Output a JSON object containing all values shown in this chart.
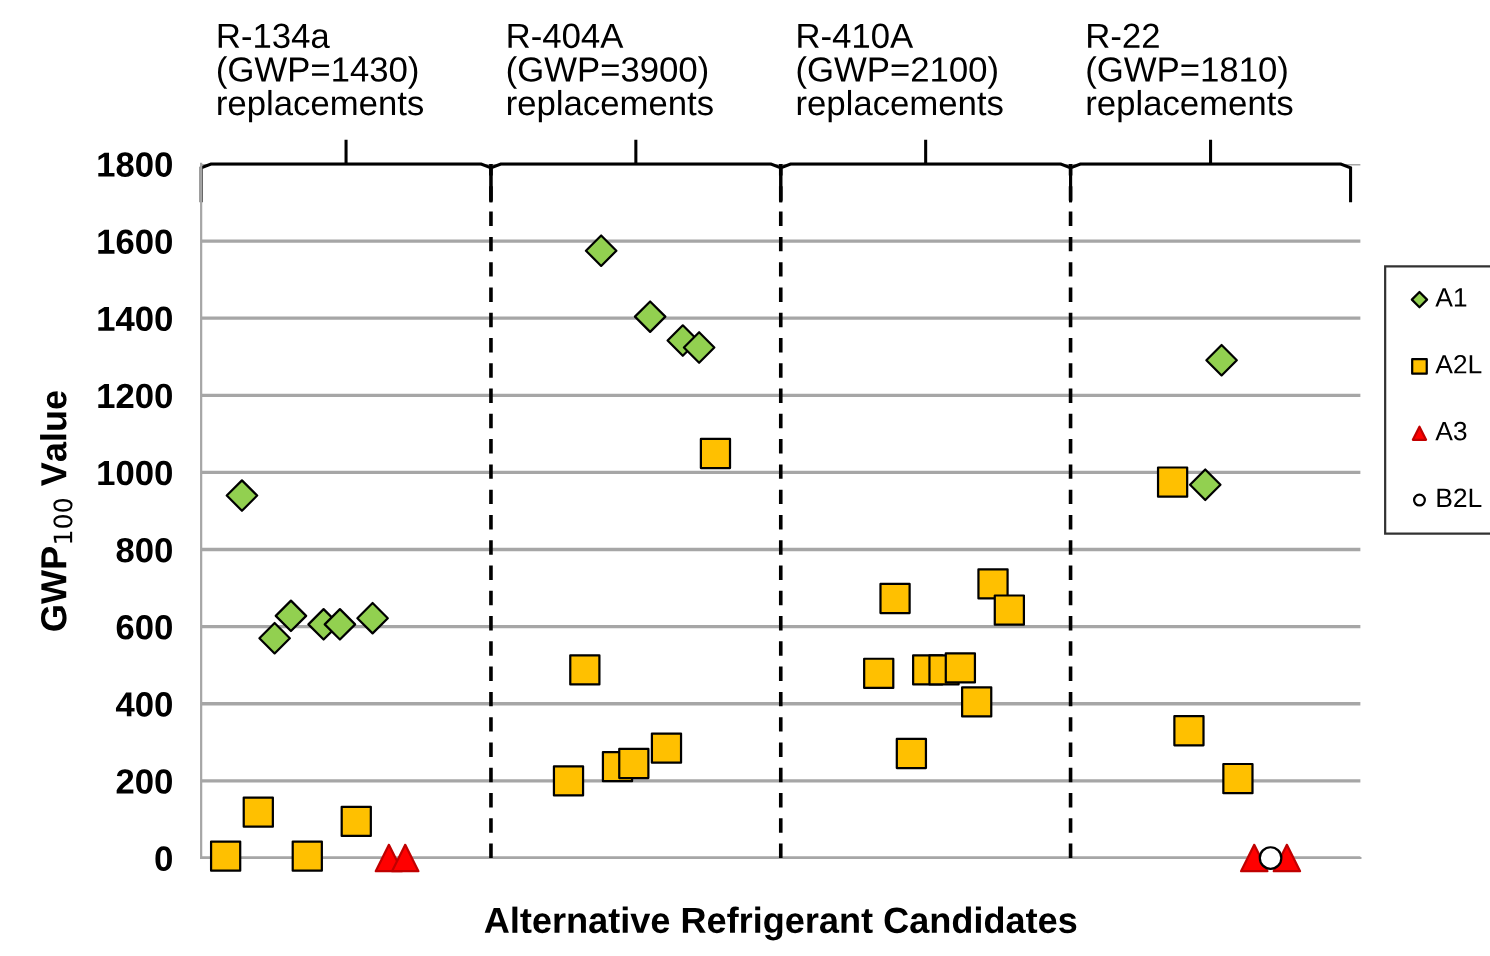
{
  "chart_data": {
    "type": "scatter",
    "xlabel": "Alternative Refrigerant Candidates",
    "ylabel": "GWP$_{100}$ Value",
    "categories": [
      null,
      null,
      null,
      null,
      null,
      null,
      null,
      null,
      null,
      null,
      null,
      null,
      null,
      null,
      null,
      null,
      null,
      null,
      null,
      null,
      null,
      null,
      null,
      null,
      null,
      null,
      null,
      null,
      null,
      null,
      null,
      null,
      null,
      null,
      null,
      null,
      null,
      null,
      null,
      null,
      null,
      null,
      null,
      null,
      null,
      null,
      null,
      null,
      null,
      null,
      null,
      null,
      null,
      null,
      null,
      null,
      null,
      null,
      null,
      null,
      null,
      null,
      null,
      null,
      null,
      null,
      null,
      null,
      null,
      null,
      null
    ],
    "ylim": [
      0,
      1800
    ],
    "yticks": [
      0,
      200,
      400,
      600,
      800,
      1000,
      1200,
      1400,
      1600,
      1800
    ],
    "grid": "y",
    "legend": "right",
    "annotations": [
      "R-134a\n(GWP=1430)\nreplacements",
      "R-404A\n(GWP=3900)\nreplacements",
      "R-410A\n(GWP=2100)\nreplacements",
      "R-22\n(GWP=1810)\nreplacements"
    ],
    "series": [
      {
        "name": "A1",
        "color": "#92d050",
        "marker": "diamond",
        "values": [
          null,
          null,
          940,
          null,
          570,
          628,
          null,
          606,
          606,
          null,
          622,
          null,
          null,
          null,
          null,
          null,
          null,
          null,
          null,
          null,
          null,
          null,
          null,
          null,
          1575,
          null,
          null,
          1404,
          null,
          1342,
          1324,
          null,
          null,
          null,
          null,
          null,
          null,
          null,
          null,
          null,
          null,
          null,
          null,
          null,
          null,
          null,
          null,
          null,
          null,
          null,
          null,
          null,
          null,
          null,
          null,
          null,
          null,
          null,
          null,
          null,
          null,
          968,
          1291,
          null,
          null,
          null,
          null,
          null,
          null,
          null,
          null
        ]
      },
      {
        "name": "A2L",
        "color": "#ffc000",
        "marker": "square",
        "values": [
          null,
          5,
          null,
          119,
          null,
          null,
          5,
          null,
          null,
          95,
          null,
          null,
          null,
          null,
          null,
          null,
          null,
          null,
          null,
          null,
          null,
          null,
          200,
          488,
          null,
          237,
          245,
          null,
          285,
          null,
          null,
          1049,
          null,
          null,
          null,
          null,
          null,
          null,
          null,
          null,
          null,
          479,
          673,
          271,
          488,
          488,
          493,
          405,
          711,
          643,
          null,
          null,
          null,
          null,
          null,
          null,
          null,
          null,
          null,
          975,
          330,
          null,
          null,
          206,
          null,
          null,
          null,
          null,
          null,
          null,
          null
        ]
      },
      {
        "name": "A3",
        "color": "#ff0000",
        "marker": "triangle",
        "values": [
          null,
          null,
          null,
          null,
          null,
          null,
          null,
          null,
          null,
          null,
          null,
          0,
          0,
          null,
          null,
          null,
          null,
          null,
          null,
          null,
          null,
          null,
          null,
          null,
          null,
          null,
          null,
          null,
          null,
          null,
          null,
          null,
          null,
          null,
          null,
          null,
          null,
          null,
          null,
          null,
          null,
          null,
          null,
          null,
          null,
          null,
          null,
          null,
          null,
          null,
          null,
          null,
          null,
          null,
          null,
          null,
          null,
          null,
          null,
          null,
          null,
          null,
          null,
          null,
          0,
          null,
          0,
          null,
          null,
          null,
          null
        ]
      },
      {
        "name": "B2L",
        "color": "#ffffff",
        "marker": "circle",
        "values": [
          null,
          null,
          null,
          null,
          null,
          null,
          null,
          null,
          null,
          null,
          null,
          null,
          null,
          null,
          null,
          null,
          null,
          null,
          null,
          null,
          null,
          null,
          null,
          null,
          null,
          null,
          null,
          null,
          null,
          null,
          null,
          null,
          null,
          null,
          null,
          null,
          null,
          null,
          null,
          null,
          null,
          null,
          null,
          null,
          null,
          null,
          null,
          null,
          null,
          null,
          null,
          null,
          null,
          null,
          null,
          null,
          null,
          null,
          null,
          null,
          null,
          null,
          null,
          null,
          null,
          0,
          null,
          null,
          null,
          null,
          null
        ]
      }
    ]
  }
}
